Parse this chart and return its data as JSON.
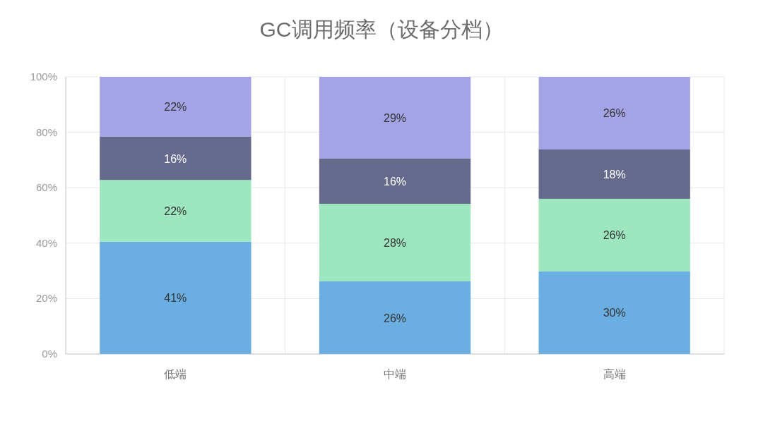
{
  "chart_data": {
    "type": "bar",
    "title": "GC调用频率（设备分档）",
    "stacked": true,
    "categories": [
      "低端",
      "中端",
      "高端"
    ],
    "series": [
      {
        "color": "#6aaee2",
        "values": [
          40.5,
          26.2,
          29.8
        ],
        "value_labels": [
          "41%",
          "26%",
          "30%"
        ]
      },
      {
        "color": "#9de6bf",
        "values": [
          22.3,
          28,
          26.2
        ],
        "value_labels": [
          "22%",
          "28%",
          "26%"
        ]
      },
      {
        "color": "#656a8c",
        "values": [
          15.6,
          16.3,
          17.8
        ],
        "value_labels": [
          "16%",
          "16%",
          "18%"
        ]
      },
      {
        "color": "#a3a3e6",
        "values": [
          21.6,
          29.5,
          26.2
        ],
        "value_labels": [
          "22%",
          "29%",
          "26%"
        ]
      }
    ],
    "ylim": [
      0,
      100
    ],
    "yticks": [
      {
        "value": 0,
        "label": "0%"
      },
      {
        "value": 20,
        "label": "20%"
      },
      {
        "value": 40,
        "label": "40%"
      },
      {
        "value": 60,
        "label": "60%"
      },
      {
        "value": 80,
        "label": "80%"
      },
      {
        "value": 100,
        "label": "100%"
      }
    ],
    "grid": true
  }
}
